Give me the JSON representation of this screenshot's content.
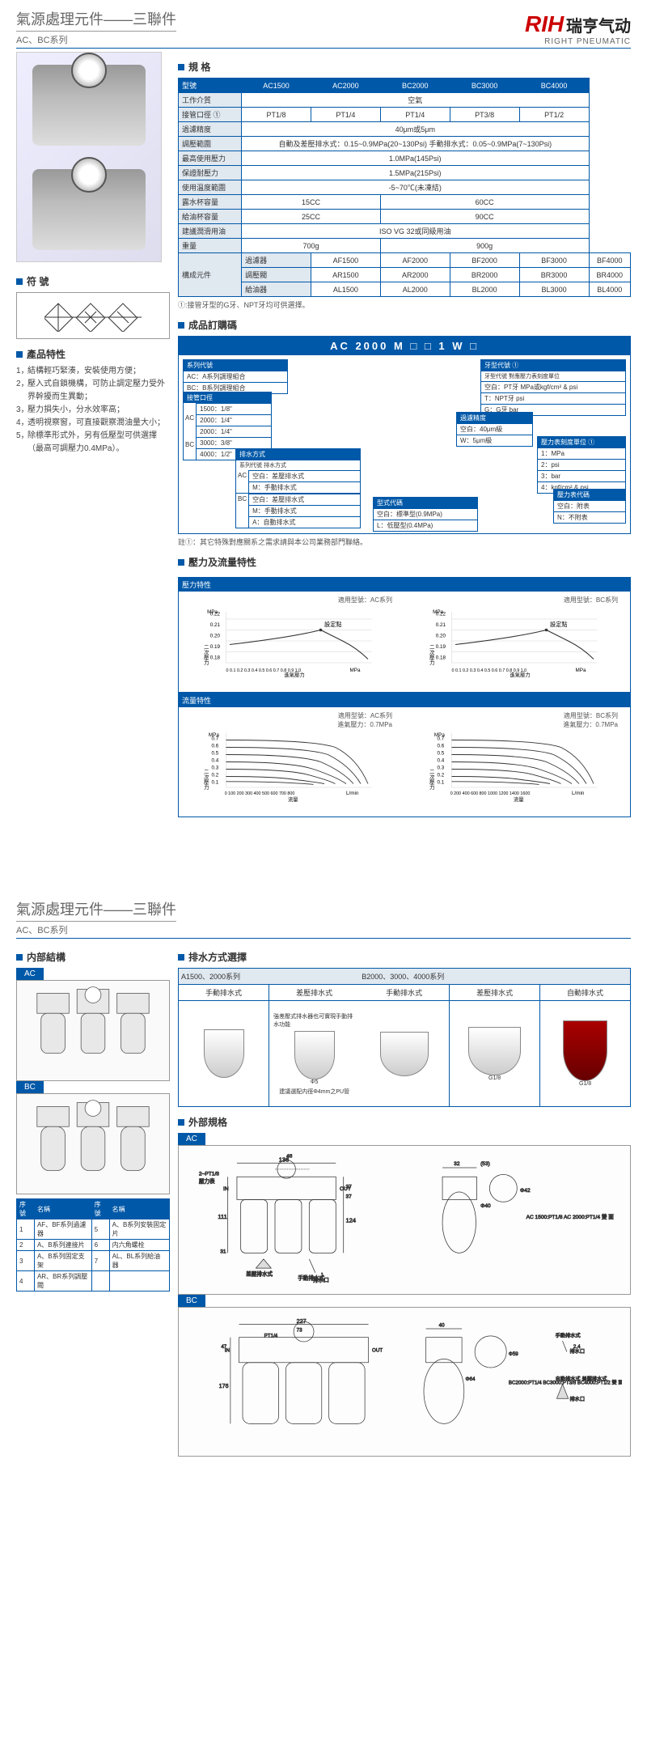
{
  "logo": {
    "brand": "RIH",
    "cn": "瑞亨气动",
    "en": "RIGHT PNEUMATIC"
  },
  "page_title": "氣源處理元件——三聯件",
  "series": "AC、BC系列",
  "sections": {
    "spec": "規 格",
    "symbol": "符 號",
    "features": "產品特性",
    "order": "成品訂購碼",
    "pressure_flow": "壓力及流量特性",
    "internal": "内部結構",
    "drain": "排水方式選擇",
    "external": "外部規格"
  },
  "spec_headers": [
    "型號",
    "AC1500",
    "AC2000",
    "BC2000",
    "BC3000",
    "BC4000"
  ],
  "spec_rows": [
    {
      "label": "工作介質",
      "cells": [
        "空氣"
      ],
      "span": 5
    },
    {
      "label": "接管口徑 ①",
      "cells": [
        "PT1/8",
        "PT1/4",
        "PT1/4",
        "PT3/8",
        "PT1/2"
      ]
    },
    {
      "label": "過濾精度",
      "cells": [
        "40μm或5μm"
      ],
      "span": 5
    },
    {
      "label": "調壓範圍",
      "cells": [
        "自動及差壓排水式：0.15~0.9MPa(20~130Psi)  手動排水式：0.05~0.9MPa(7~130Psi)"
      ],
      "span": 5
    },
    {
      "label": "最高使用壓力",
      "cells": [
        "1.0MPa(145Psi)"
      ],
      "span": 5
    },
    {
      "label": "保證耐壓力",
      "cells": [
        "1.5MPa(215Psi)"
      ],
      "span": 5
    },
    {
      "label": "使用溫度範圍",
      "cells": [
        "-5~70℃(未凍結)"
      ],
      "span": 5
    },
    {
      "label": "露水杯容量",
      "cells": [
        "15CC",
        "60CC"
      ],
      "spans": [
        2,
        3
      ]
    },
    {
      "label": "給油杯容量",
      "cells": [
        "25CC",
        "90CC"
      ],
      "spans": [
        2,
        3
      ]
    },
    {
      "label": "建議潤滑用油",
      "cells": [
        "ISO VG 32或同級用油"
      ],
      "span": 5
    },
    {
      "label": "重量",
      "cells": [
        "700g",
        "900g"
      ],
      "spans": [
        2,
        3
      ]
    }
  ],
  "component_rows": [
    {
      "label": "過濾器",
      "cells": [
        "AF1500",
        "AF2000",
        "BF2000",
        "BF3000",
        "BF4000"
      ]
    },
    {
      "label": "調壓閥",
      "cells": [
        "AR1500",
        "AR2000",
        "BR2000",
        "BR3000",
        "BR4000"
      ]
    },
    {
      "label": "給油器",
      "cells": [
        "AL1500",
        "AL2000",
        "BL2000",
        "BL3000",
        "BL4000"
      ]
    }
  ],
  "component_label": "構成元件",
  "spec_note": "①:接管牙型的G牙、NPT牙均可供選擇。",
  "features_list": [
    "結構輕巧緊湊，安裝使用方便；",
    "壓入式自鎖機構，可防止調定壓力受外界幹擾而生異動；",
    "壓力損失小，分水效率高；",
    "透明視察窗，可直接觀察潤油量大小；",
    "除標準形式外，另有低壓型可供選擇（最高可調壓力0.4MPa）。"
  ],
  "order_code": "AC 2000 M □ □ 1 W □",
  "order_boxes": {
    "series": {
      "title": "系列代號",
      "rows": [
        "AC：A系列調理組合",
        "BC：B系列調理組合"
      ]
    },
    "port": {
      "title": "接管口徑",
      "rows": [
        "1500：1/8\"",
        "2000：1/4\"",
        "2000：1/4\"",
        "3000：3/8\"",
        "4000：1/2\""
      ],
      "labels": [
        "AC",
        "BC"
      ]
    },
    "drain": {
      "title": "排水方式",
      "head": "系列代號  排水方式",
      "rows_ac": [
        "空白：差壓排水式",
        "M：手動排水式"
      ],
      "rows_bc": [
        "空白：差壓排水式",
        "M：手動排水式",
        "A：自動排水式"
      ],
      "label_ac": "AC",
      "label_bc": "BC"
    },
    "type": {
      "title": "型式代碼",
      "rows": [
        "空白：標準型(0.9MPa)",
        "L：低壓型(0.4MPa)"
      ]
    },
    "thread": {
      "title": "牙型代號",
      "head": "牙型代號  對應壓力表刻度單位",
      "rows": [
        "空白：PT牙  MPa或kgf/cm² & psi",
        "T：NPT牙  psi",
        "G：G牙  bar"
      ],
      "note": "①"
    },
    "filter": {
      "title": "過濾精度",
      "rows": [
        "空白：40μm級",
        "W：5μm級"
      ]
    },
    "gauge_unit": {
      "title": "壓力表刻度單位",
      "rows": [
        "1：MPa",
        "2：psi",
        "3：bar",
        "4：kgf/cm² & psi"
      ],
      "note": "①"
    },
    "gauge_code": {
      "title": "壓力表代碼",
      "rows": [
        "空白：附表",
        "N：不附表"
      ]
    }
  },
  "order_note": "註①：其它特殊對應關系之需求請與本公司業務部門聯絡。",
  "chart_pressure": {
    "tag": "壓力特性",
    "left_label": "適用型號：AC系列",
    "right_label": "適用型號：BC系列",
    "setpoint": "設定點",
    "y_values": [
      "0.18",
      "0.19",
      "0.20",
      "0.21",
      "0.22"
    ],
    "x_label": "進氣壓力",
    "y_label": "二次壓力",
    "x_unit": "MPa",
    "y_unit": "MPa",
    "x_ticks": "0 0.1 0.2 0.3 0.4 0.5 0.6 0.7 0.8 0.9 1.0",
    "background_color": "#fafafa",
    "grid_color": "#ccc",
    "line_color": "#333"
  },
  "chart_flow": {
    "tag": "流量特性",
    "left_label": "適用型號：AC系列\n進氣壓力：0.7MPa",
    "right_label": "適用型號：BC系列\n進氣壓力：0.7MPa",
    "y_values": [
      "0.1",
      "0.2",
      "0.3",
      "0.4",
      "0.5",
      "0.6",
      "0.7"
    ],
    "x_label": "流量",
    "y_label": "二次壓力",
    "x_unit": "L/min",
    "y_unit": "MPa",
    "x_ticks_ac": "0 100 200 300 400 500 600 700 800",
    "x_ticks_bc": "0 200 400 600 800 1000 1200 1400 1600"
  },
  "parts_list": {
    "headers": [
      "序號",
      "名稱",
      "序號",
      "名稱"
    ],
    "rows": [
      [
        "1",
        "AF、BF系列過濾器",
        "5",
        "A、B系列安裝固定片"
      ],
      [
        "2",
        "A、B系列連接片",
        "6",
        "内六角螺栓"
      ],
      [
        "3",
        "A、B系列固定支架",
        "7",
        "AL、BL系列給油器"
      ],
      [
        "4",
        "AR、BR系列調壓閥",
        "",
        ""
      ]
    ]
  },
  "drain_label_a": "A1500、2000系列",
  "drain_label_b": "B2000、3000、4000系列",
  "drain_types": [
    "手動排水式",
    "差壓排水式",
    "手動排水式",
    "差壓排水式",
    "自動排水式"
  ],
  "drain_note1": "強差壓式排水器也可實現手動排水功能",
  "drain_note2": "建議選配内徑Φ4mm之PU管",
  "drain_dim1": "Φ5",
  "drain_dim2": "G1/8",
  "drain_dim3": "G1/8",
  "ext_ac_dims": {
    "w1": "136",
    "w2": "48",
    "note1": "2~PT1/8",
    "note2": "壓力表",
    "h1": "111",
    "h2": "31",
    "h3": "124",
    "h4": "37",
    "h5": "37",
    "in": "IN",
    "out": "OUT",
    "drain_d": "差壓排水式",
    "drain_m": "手動排水式",
    "port": "排水口",
    "side_w": "32",
    "side_w2": "(53)",
    "side_d": "Φ40",
    "side_d2": "Φ42",
    "model": "AC 1500:PT1/8\nAC 2000:PT1/4\n雙 面"
  },
  "ext_bc_dims": {
    "w1": "227",
    "w2": "73",
    "note1": "PT1/4",
    "h1": "176",
    "h2": "47",
    "in": "IN",
    "out": "OUT",
    "side_w": "40",
    "side_d": "Φ64",
    "side_d2": "Φ59",
    "drain_m": "手動排水式",
    "drain_a": "自動排水式\n差壓排水式",
    "port": "排水口",
    "dim24": "2.4",
    "model": "BC2000:PT1/4\nBC3000:PT3/8\nBC4000:PT1/2\n雙 面"
  },
  "internal_labels": {
    "ac": "AC",
    "bc": "BC"
  },
  "colors": {
    "brand_blue": "#0058a8",
    "brand_red": "#c00",
    "text": "#333",
    "light_bg": "#e0e8f0"
  }
}
